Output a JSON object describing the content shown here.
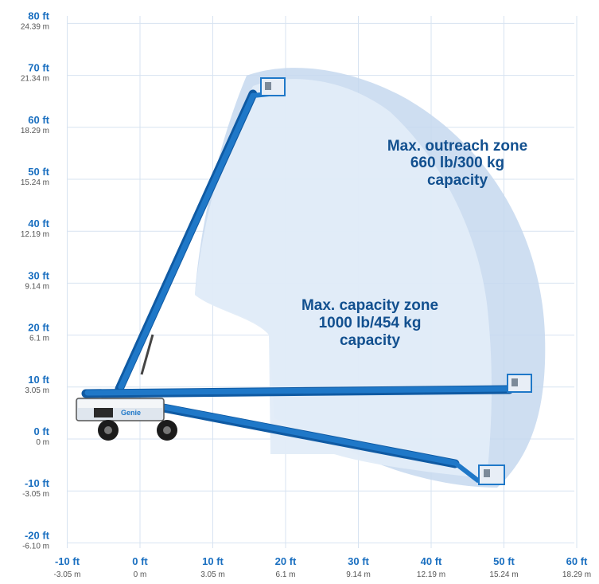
{
  "diagram": {
    "y_ticks": [
      {
        "ft": "80 ft",
        "m": "24.39 m",
        "value": 80
      },
      {
        "ft": "70 ft",
        "m": "21.34 m",
        "value": 70
      },
      {
        "ft": "60 ft",
        "m": "18.29 m",
        "value": 60
      },
      {
        "ft": "50 ft",
        "m": "15.24 m",
        "value": 50
      },
      {
        "ft": "40 ft",
        "m": "12.19 m",
        "value": 40
      },
      {
        "ft": "30 ft",
        "m": "9.14 m",
        "value": 30
      },
      {
        "ft": "20 ft",
        "m": "6.1 m",
        "value": 20
      },
      {
        "ft": "10 ft",
        "m": "3.05 m",
        "value": 10
      },
      {
        "ft": "0 ft",
        "m": "0 m",
        "value": 0
      },
      {
        "ft": "-10 ft",
        "m": "-3.05 m",
        "value": -10
      },
      {
        "ft": "-20 ft",
        "m": "-6.10 m",
        "value": -20
      }
    ],
    "x_ticks": [
      {
        "ft": "-10 ft",
        "m": "-3.05 m",
        "value": -10
      },
      {
        "ft": "0 ft",
        "m": "0 m",
        "value": 0
      },
      {
        "ft": "10 ft",
        "m": "3.05 m",
        "value": 10
      },
      {
        "ft": "20 ft",
        "m": "6.1 m",
        "value": 20
      },
      {
        "ft": "30 ft",
        "m": "9.14 m",
        "value": 30
      },
      {
        "ft": "40 ft",
        "m": "12.19 m",
        "value": 40
      },
      {
        "ft": "50 ft",
        "m": "15.24 m",
        "value": 50
      },
      {
        "ft": "60 ft",
        "m": "18.29 m",
        "value": 60
      }
    ],
    "zones": {
      "outreach": {
        "line1": "Max. outreach zone",
        "line2": "660 lb/300 kg",
        "line3": "capacity"
      },
      "capacity": {
        "line1": "Max. capacity zone",
        "line2": "1000 lb/454 kg",
        "line3": "capacity"
      }
    },
    "machine_label": "Genie",
    "colors": {
      "boom": "#1f78c8",
      "boom_dark": "#0f5aa3",
      "outreach_zone": "#c6d8ef",
      "capacity_zone": "#e2ecf8",
      "grid": "#d7e3f1",
      "tick_ft": "#1a6fc0",
      "zone_text": "#12508f"
    }
  }
}
